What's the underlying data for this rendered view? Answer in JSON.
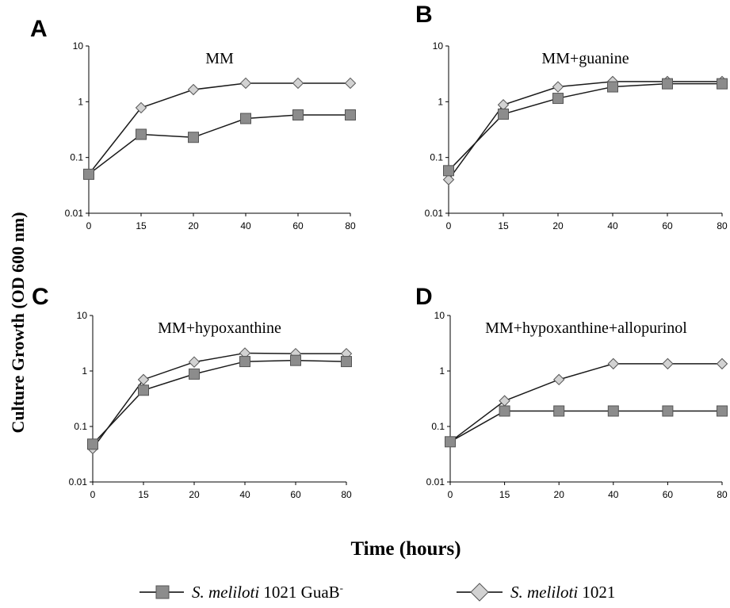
{
  "chart_data": [
    {
      "type": "line",
      "panel": "A",
      "title": "MM",
      "x": [
        "0",
        "15",
        "20",
        "40",
        "60",
        "80"
      ],
      "yscale": "log",
      "ylim": [
        0.01,
        10
      ],
      "yticks": [
        "0.01",
        "0.1",
        "1",
        "10"
      ],
      "series": [
        {
          "name": "GuaB",
          "values": [
            0.05,
            0.26,
            0.23,
            0.5,
            0.58,
            0.58
          ]
        },
        {
          "name": "WT",
          "values": [
            0.05,
            0.78,
            1.65,
            2.15,
            2.15,
            2.15
          ]
        }
      ]
    },
    {
      "type": "line",
      "panel": "B",
      "title": "MM+guanine",
      "x": [
        "0",
        "15",
        "20",
        "40",
        "60",
        "80"
      ],
      "yscale": "log",
      "ylim": [
        0.01,
        10
      ],
      "yticks": [
        "0.01",
        "0.1",
        "1",
        "10"
      ],
      "series": [
        {
          "name": "GuaB",
          "values": [
            0.058,
            0.6,
            1.15,
            1.85,
            2.1,
            2.1
          ]
        },
        {
          "name": "WT",
          "values": [
            0.04,
            0.88,
            1.85,
            2.3,
            2.3,
            2.3
          ]
        }
      ]
    },
    {
      "type": "line",
      "panel": "C",
      "title": "MM+hypoxanthine",
      "x": [
        "0",
        "15",
        "20",
        "40",
        "60",
        "80"
      ],
      "yscale": "log",
      "ylim": [
        0.01,
        10
      ],
      "yticks": [
        "0.01",
        "0.1",
        "1",
        "10"
      ],
      "series": [
        {
          "name": "GuaB",
          "values": [
            0.048,
            0.45,
            0.88,
            1.48,
            1.55,
            1.48
          ]
        },
        {
          "name": "WT",
          "values": [
            0.04,
            0.7,
            1.45,
            2.1,
            2.05,
            2.05
          ]
        }
      ]
    },
    {
      "type": "line",
      "panel": "D",
      "title": "MM+hypoxanthine+allopurinol",
      "x": [
        "0",
        "15",
        "20",
        "40",
        "60",
        "80"
      ],
      "yscale": "log",
      "ylim": [
        0.01,
        10
      ],
      "yticks": [
        "0.01",
        "0.1",
        "1",
        "10"
      ],
      "series": [
        {
          "name": "GuaB",
          "values": [
            0.053,
            0.19,
            0.19,
            0.19,
            0.19,
            0.19
          ]
        },
        {
          "name": "WT",
          "values": [
            0.053,
            0.29,
            0.7,
            1.35,
            1.35,
            1.35
          ]
        }
      ]
    }
  ],
  "ylabel": "Culture Growth (OD 600 nm)",
  "xlabel": "Time (hours)",
  "legend": {
    "placement": "bottom",
    "items": [
      {
        "key": "GuaB",
        "species": "S. meliloti",
        "strain": "1021 GuaB",
        "superscript": "-",
        "marker": "square",
        "color": "#8c8c8c"
      },
      {
        "key": "WT",
        "species": "S. meliloti",
        "strain": "1021",
        "superscript": "",
        "marker": "diamond",
        "color": "#d2d2d2"
      }
    ]
  },
  "colors": {
    "line": "#1a1a1a",
    "square_fill": "#8c8c8c",
    "diamond_fill": "#d2d2d2",
    "marker_stroke": "#555555"
  }
}
